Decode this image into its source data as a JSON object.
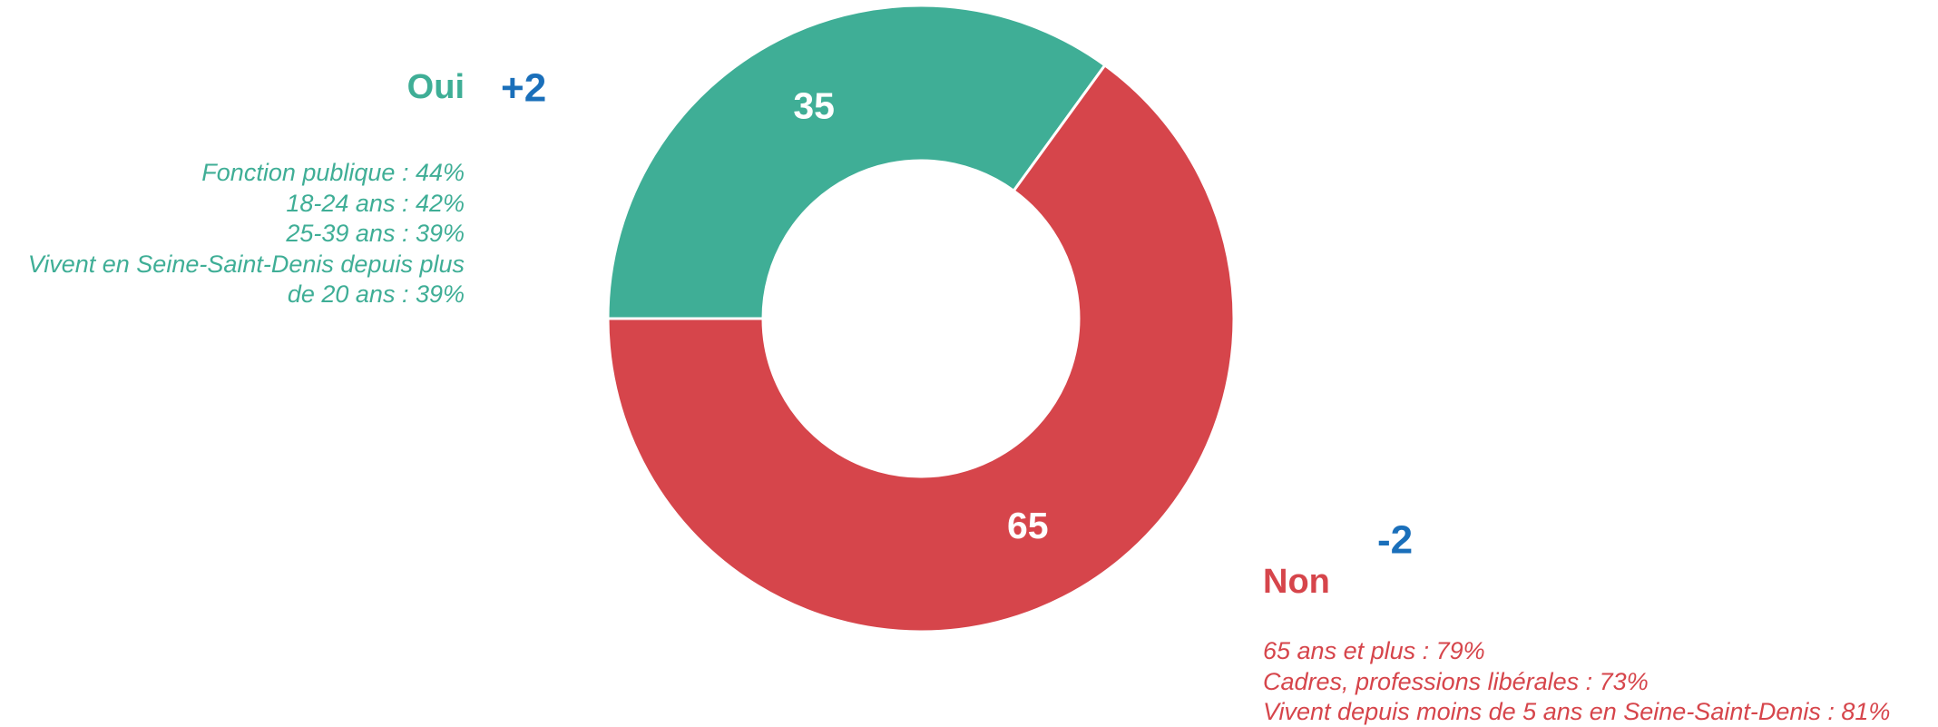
{
  "chart_data": {
    "type": "pie",
    "categories": [
      "Oui",
      "Non"
    ],
    "values": [
      35,
      65
    ],
    "colors": [
      "#3fae96",
      "#d6454b"
    ],
    "changes": [
      "+2",
      "-2"
    ],
    "notes": [
      [
        "Fonction publique : 44%",
        "18-24 ans : 42%",
        "25-39 ans : 39%",
        "Vivent en Seine-Saint-Denis depuis plus de 20 ans : 39%"
      ],
      [
        "65 ans et plus : 79%",
        "Cadres, professions libérales : 73%",
        "Vivent depuis moins de 5 ans en Seine-Saint-Denis : 81%"
      ]
    ]
  }
}
